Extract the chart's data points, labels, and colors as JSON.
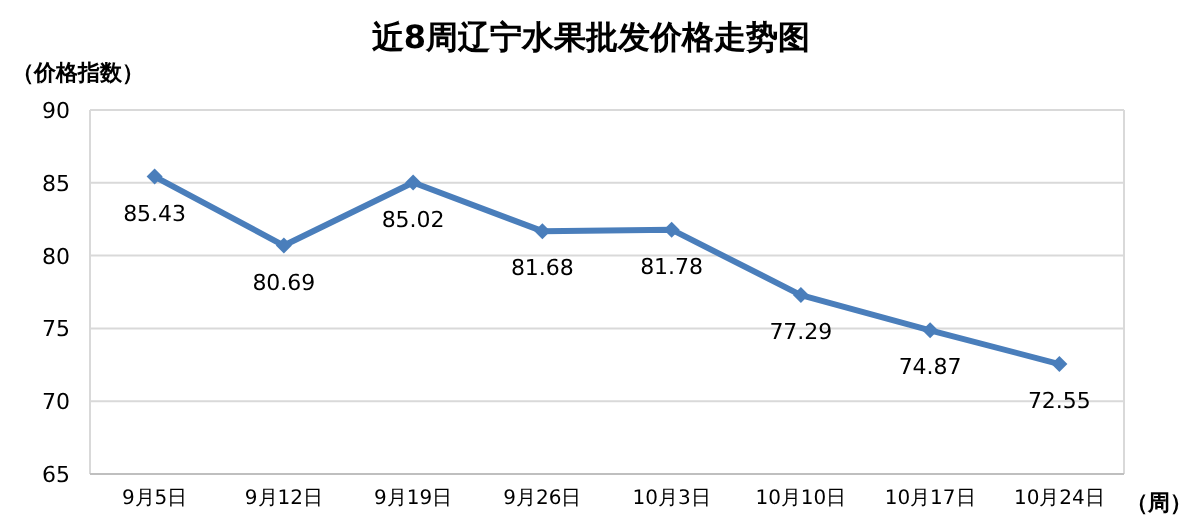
{
  "chart_data": {
    "type": "line",
    "title": "近8周辽宁水果批发价格走势图",
    "ylabel": "（价格指数）",
    "xlabel": "（周）",
    "categories": [
      "9月5日",
      "9月12日",
      "9月19日",
      "9月26日",
      "10月3日",
      "10月10日",
      "10月17日",
      "10月24日"
    ],
    "values": [
      85.43,
      80.69,
      85.02,
      81.68,
      81.78,
      77.29,
      74.87,
      72.55
    ],
    "color": "#4a7ebb",
    "ylim": [
      65,
      90
    ],
    "yticks": [
      65,
      70,
      75,
      80,
      85,
      90
    ],
    "grid": "y",
    "marker": "diamond",
    "data_labels": true
  }
}
